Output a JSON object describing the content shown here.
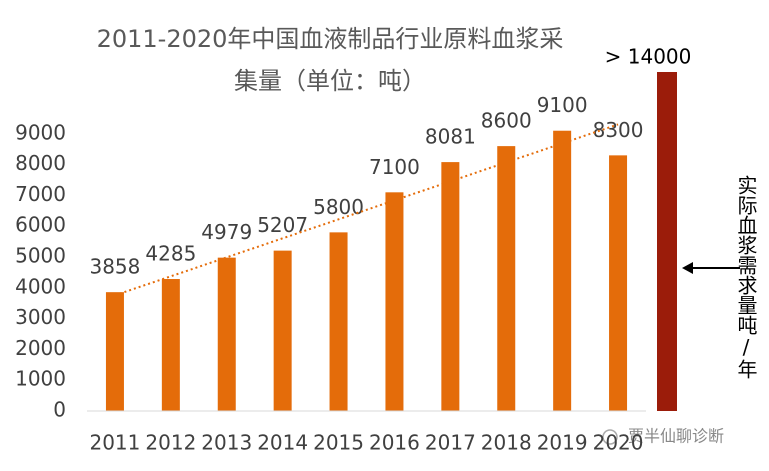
{
  "chart_data": {
    "type": "bar",
    "title_line1": "2011-2020年中国血液制品行业原料血浆采",
    "title_line2": "集量（单位：吨）",
    "categories": [
      "2011",
      "2012",
      "2013",
      "2014",
      "2015",
      "2016",
      "2017",
      "2018",
      "2019",
      "2020"
    ],
    "values": [
      3858,
      4285,
      4979,
      5207,
      5800,
      7100,
      8081,
      8600,
      9100,
      8300
    ],
    "color": "#e46c0a",
    "ylim": [
      0,
      10000
    ],
    "yticks": [
      0,
      1000,
      2000,
      3000,
      4000,
      5000,
      6000,
      7000,
      8000,
      9000
    ],
    "trendline": true,
    "demand_label": "> 14000",
    "demand_color": "#9b1c0a",
    "demand_annotation": "实际血浆需求量吨/年",
    "watermark": "贾半仙聊诊断"
  }
}
